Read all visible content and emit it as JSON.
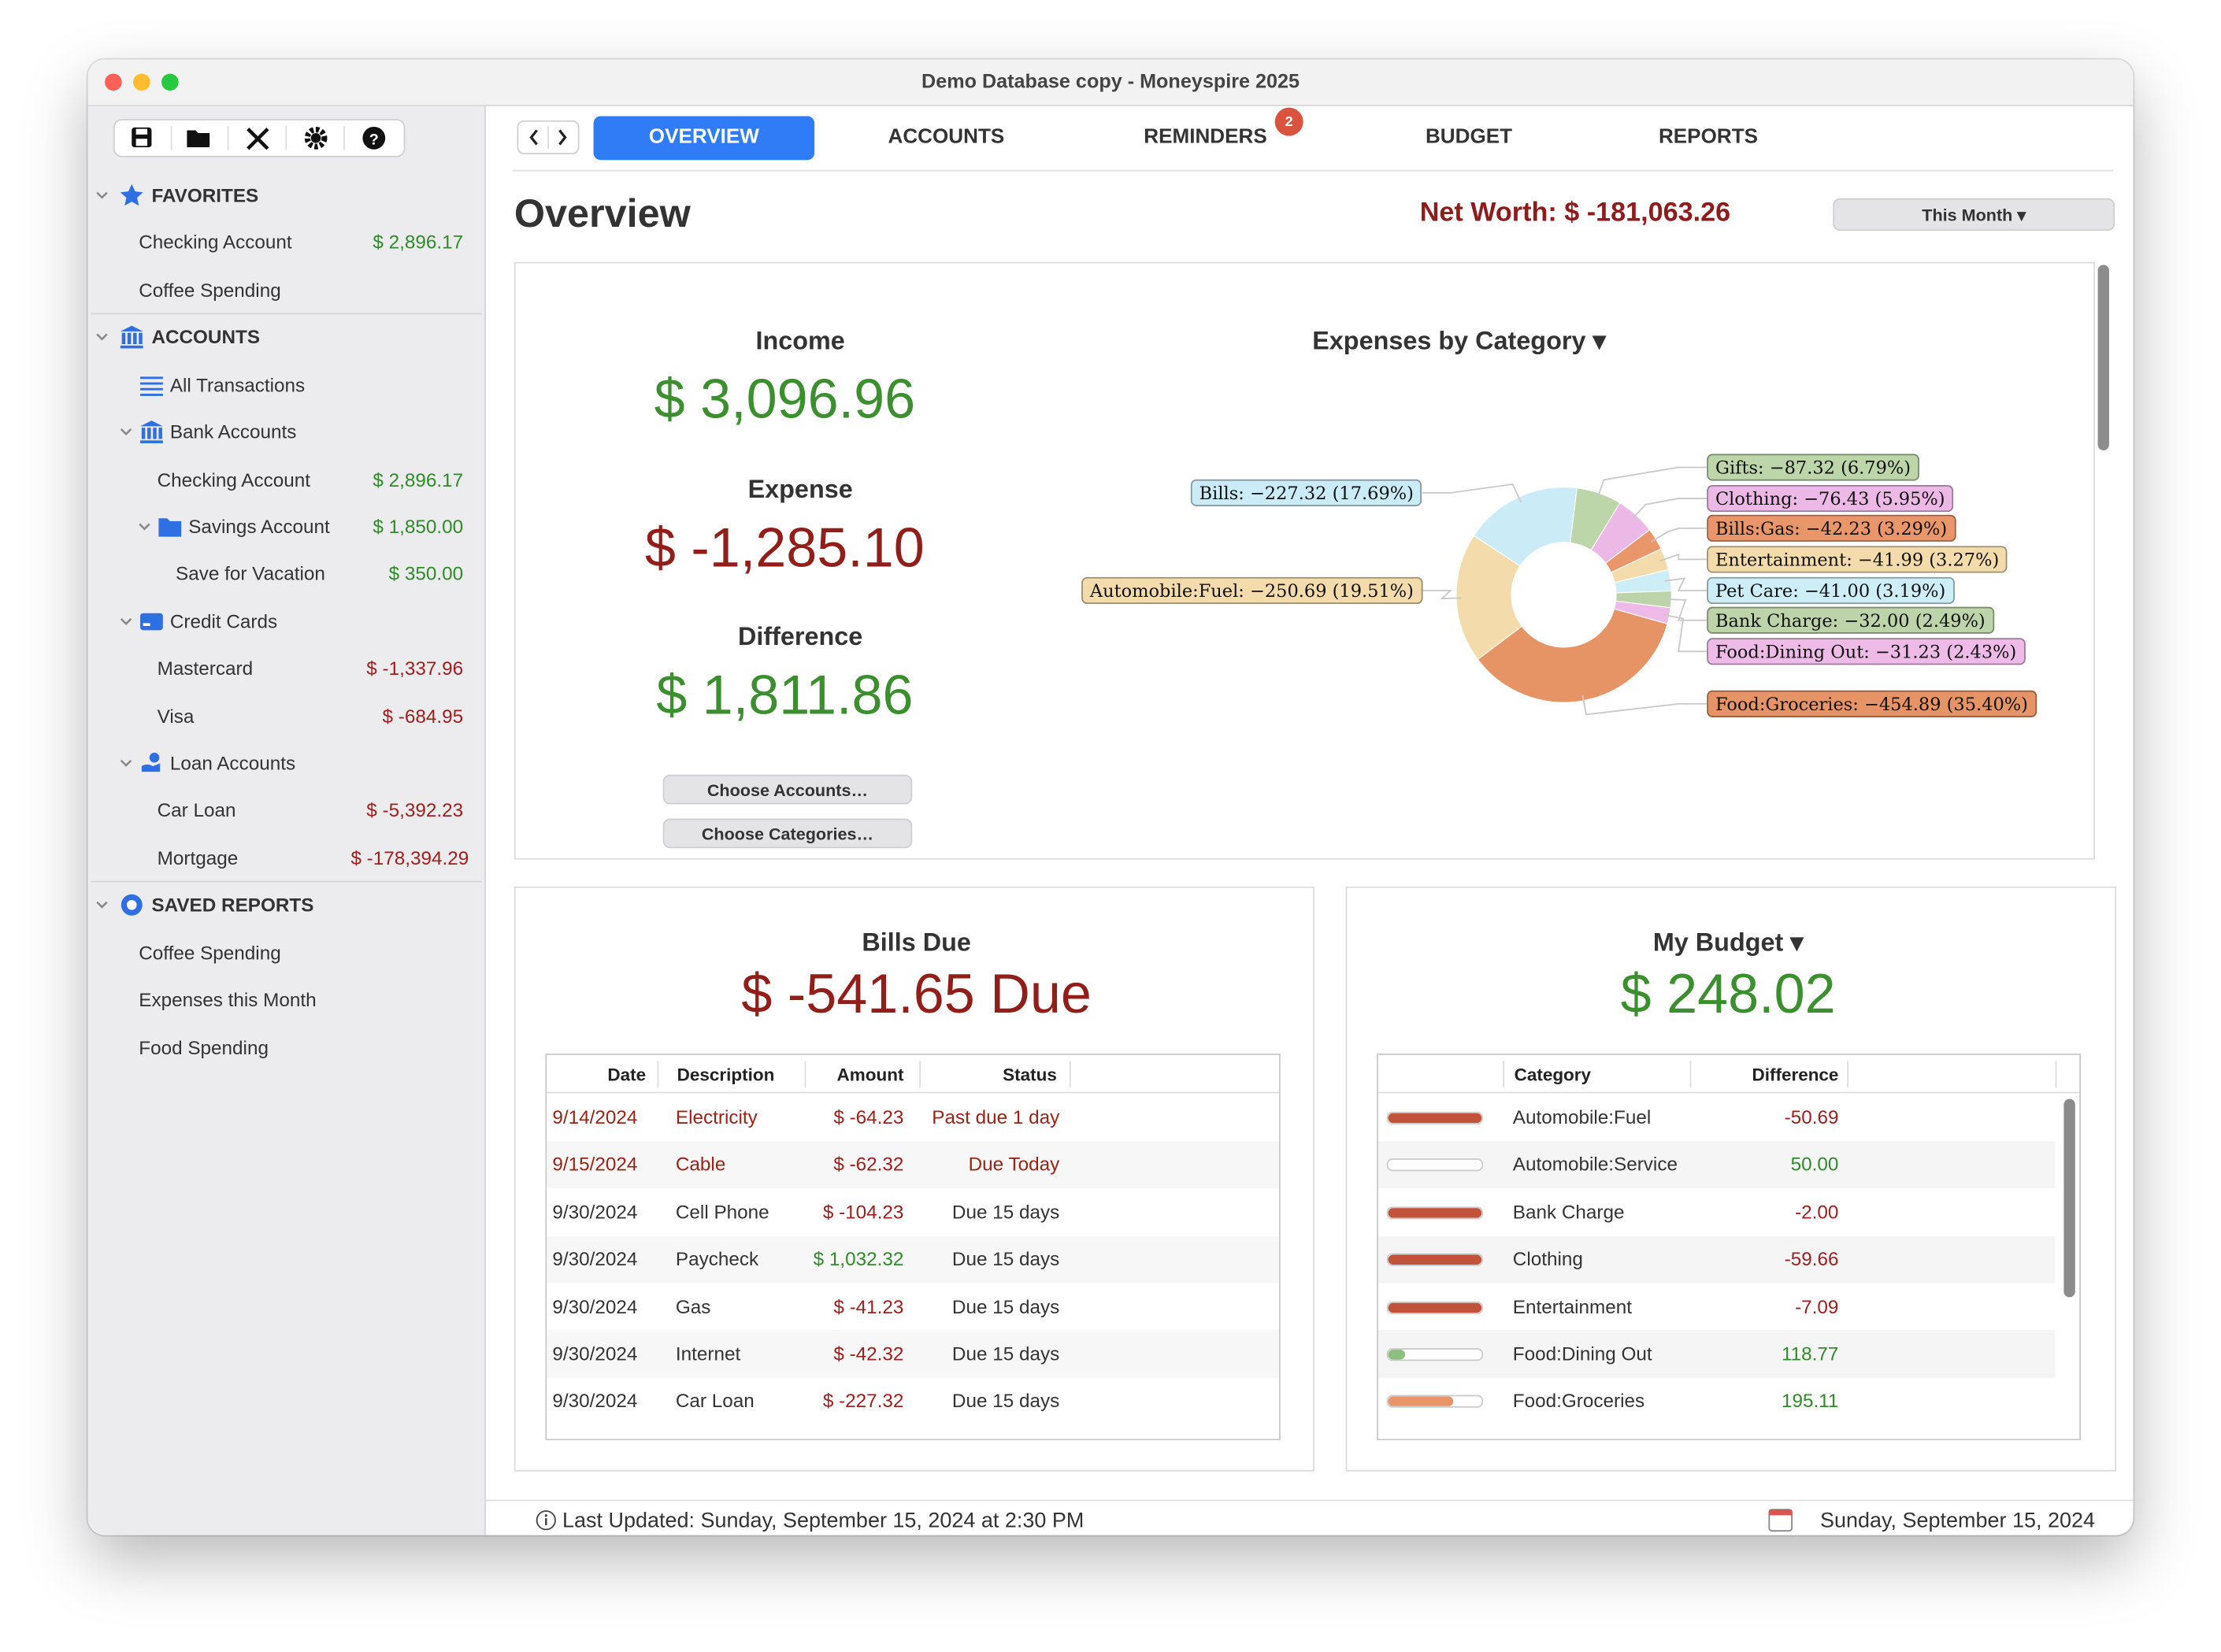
{
  "window": {
    "title": "Demo Database copy - Moneyspire 2025"
  },
  "sidebar": {
    "sections": [
      {
        "title": "FAVORITES",
        "items": [
          {
            "label": "Checking Account",
            "amount": "$ 2,896.17"
          },
          {
            "label": "Coffee Spending"
          }
        ]
      },
      {
        "title": "ACCOUNTS",
        "items": [
          {
            "label": "All Transactions"
          },
          {
            "label": "Bank Accounts",
            "children": [
              {
                "label": "Checking Account",
                "amount": "$ 2,896.17"
              },
              {
                "label": "Savings Account",
                "amount": "$ 1,850.00",
                "children": [
                  {
                    "label": "Save for Vacation",
                    "amount": "$ 350.00"
                  }
                ]
              }
            ]
          },
          {
            "label": "Credit Cards",
            "children": [
              {
                "label": "Mastercard",
                "amount": "$ -1,337.96"
              },
              {
                "label": "Visa",
                "amount": "$ -684.95"
              }
            ]
          },
          {
            "label": "Loan Accounts",
            "children": [
              {
                "label": "Car Loan",
                "amount": "$ -5,392.23"
              },
              {
                "label": "Mortgage",
                "amount": "$ -178,394.29"
              }
            ]
          }
        ]
      },
      {
        "title": "SAVED REPORTS",
        "items": [
          {
            "label": "Coffee Spending"
          },
          {
            "label": "Expenses this Month"
          },
          {
            "label": "Food Spending"
          }
        ]
      }
    ]
  },
  "tabs": {
    "items": [
      "OVERVIEW",
      "ACCOUNTS",
      "REMINDERS",
      "BUDGET",
      "REPORTS"
    ],
    "active": 0,
    "reminders_badge": "2"
  },
  "overview": {
    "title": "Overview",
    "net_worth": "Net Worth: $ -181,063.26",
    "period": "This Month ▾",
    "income_label": "Income",
    "income": "$ 3,096.96",
    "expense_label": "Expense",
    "expense": "$ -1,285.10",
    "difference_label": "Difference",
    "difference": "$ 1,811.86",
    "buttons": [
      "Choose Accounts…",
      "Choose Categories…"
    ]
  },
  "expenses_chart": {
    "type": "donut",
    "title": "Expenses by Category ▾",
    "slices": [
      {
        "label": "Gifts: −87.32 (6.79%)",
        "percent": 6.79,
        "color": "#bcd6a9"
      },
      {
        "label": "Clothing: −76.43 (5.95%)",
        "percent": 5.95,
        "color": "#ecb9e6"
      },
      {
        "label": "Bills:Gas: −42.23 (3.29%)",
        "percent": 3.29,
        "color": "#e9966b"
      },
      {
        "label": "Entertainment: −41.99 (3.27%)",
        "percent": 3.27,
        "color": "#f4dbab"
      },
      {
        "label": "Pet Care: −41.00 (3.19%)",
        "percent": 3.19,
        "color": "#cdeef7"
      },
      {
        "label": "Bank Charge: −32.00 (2.49%)",
        "percent": 2.49,
        "color": "#bdd4ab"
      },
      {
        "label": "Food:Dining Out: −31.23 (2.43%)",
        "percent": 2.43,
        "color": "#eebbe8"
      },
      {
        "label": "Food:Groceries: −454.89 (35.40%)",
        "percent": 35.4,
        "color": "#e69366"
      },
      {
        "label": "Automobile:Fuel: −250.69 (19.51%)",
        "percent": 19.51,
        "color": "#f3dbab"
      },
      {
        "label": "Bills: −227.32 (17.69%)",
        "percent": 17.69,
        "color": "#cbebf7"
      }
    ]
  },
  "bills_due": {
    "title": "Bills Due",
    "amount": "$ -541.65 Due",
    "columns": [
      "Date",
      "Description",
      "Amount",
      "Status"
    ],
    "rows": [
      {
        "cells": [
          "9/14/2024",
          "Electricity",
          "$ -64.23",
          "Past due 1 day"
        ],
        "color": "#9b2316"
      },
      {
        "cells": [
          "9/15/2024",
          "Cable",
          "$ -62.32",
          "Due Today"
        ],
        "color": "#9b2316"
      },
      {
        "cells": [
          "9/30/2024",
          "Cell Phone",
          "$ -104.23",
          "Due 15 days"
        ]
      },
      {
        "cells": [
          "9/30/2024",
          "Paycheck",
          "$ 1,032.32",
          "Due 15 days"
        ]
      },
      {
        "cells": [
          "9/30/2024",
          "Gas",
          "$ -41.23",
          "Due 15 days"
        ]
      },
      {
        "cells": [
          "9/30/2024",
          "Internet",
          "$ -42.32",
          "Due 15 days"
        ]
      },
      {
        "cells": [
          "9/30/2024",
          "Car Loan",
          "$ -227.32",
          "Due 15 days"
        ]
      }
    ]
  },
  "budget": {
    "title": "My Budget ▾",
    "amount": "$ 248.02",
    "columns": [
      "Category",
      "Difference"
    ],
    "rows": [
      {
        "category": "Automobile:Fuel",
        "difference": "-50.69",
        "bar_color": "#c0533a"
      },
      {
        "category": "Automobile:Service",
        "difference": "50.00",
        "bar_color": "#ffffff"
      },
      {
        "category": "Bank Charge",
        "difference": "-2.00",
        "bar_color": "#c0533a"
      },
      {
        "category": "Clothing",
        "difference": "-59.66",
        "bar_color": "#c0533a"
      },
      {
        "category": "Entertainment",
        "difference": "-7.09",
        "bar_color": "#c0533a"
      },
      {
        "category": "Food:Dining Out",
        "difference": "118.77",
        "bar_color": "#8fbf7f"
      },
      {
        "category": "Food:Groceries",
        "difference": "195.11",
        "bar_color": "#e8956a"
      }
    ]
  },
  "status_bar": {
    "last_updated": "Last Updated: Sunday, September 15, 2024 at 2:30 PM",
    "today": "Sunday, September 15, 2024"
  }
}
